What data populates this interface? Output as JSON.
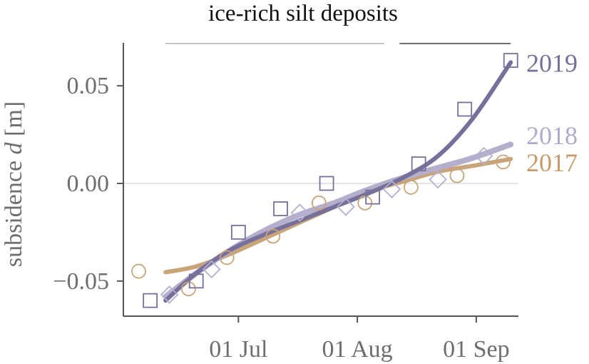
{
  "chart_data": {
    "type": "scatter",
    "title": "ice-rich silt deposits",
    "xlabel": "",
    "ylabel": "subsidence",
    "ylabel_symbol": "d",
    "ylabel_unit": "[m]",
    "x_type": "date",
    "xlim": [
      "2019-06-01",
      "2019-09-12"
    ],
    "ylim": [
      -0.068,
      0.072
    ],
    "x_ticks": [
      {
        "date": "2019-07-01",
        "label": "01 Jul"
      },
      {
        "date": "2019-08-01",
        "label": "01 Aug"
      },
      {
        "date": "2019-09-01",
        "label": "01 Sep"
      }
    ],
    "y_ticks": [
      {
        "value": 0.05,
        "label": "0.05"
      },
      {
        "value": 0.0,
        "label": "0.00"
      },
      {
        "value": -0.05,
        "label": "−0.05"
      }
    ],
    "grid": "horizontal line at 0.00 only",
    "period_bars": [
      {
        "start": "2019-06-12",
        "end": "2019-08-08",
        "color": "#c4c4c4"
      },
      {
        "start": "2019-08-12",
        "end": "2019-09-10",
        "color": "#707070"
      }
    ],
    "series": [
      {
        "name": "2017",
        "color": "#c9a478",
        "label_color": "#c79b6b",
        "marker": "circle",
        "points": [
          {
            "x": "2019-06-05",
            "y": -0.045
          },
          {
            "x": "2019-06-18",
            "y": -0.054
          },
          {
            "x": "2019-06-28",
            "y": -0.038
          },
          {
            "x": "2019-07-10",
            "y": -0.027
          },
          {
            "x": "2019-07-22",
            "y": -0.01
          },
          {
            "x": "2019-08-03",
            "y": -0.01
          },
          {
            "x": "2019-08-15",
            "y": -0.002
          },
          {
            "x": "2019-08-27",
            "y": 0.004
          },
          {
            "x": "2019-09-08",
            "y": 0.011
          }
        ],
        "fit": [
          {
            "x": "2019-06-12",
            "y": -0.0455
          },
          {
            "x": "2019-06-20",
            "y": -0.0425
          },
          {
            "x": "2019-06-29",
            "y": -0.036
          },
          {
            "x": "2019-07-08",
            "y": -0.028
          },
          {
            "x": "2019-07-17",
            "y": -0.02
          },
          {
            "x": "2019-07-26",
            "y": -0.012
          },
          {
            "x": "2019-08-04",
            "y": -0.004
          },
          {
            "x": "2019-08-13",
            "y": 0.001
          },
          {
            "x": "2019-08-22",
            "y": 0.006
          },
          {
            "x": "2019-08-31",
            "y": 0.009
          },
          {
            "x": "2019-09-10",
            "y": 0.0125
          }
        ]
      },
      {
        "name": "2018",
        "color": "#b6aecd",
        "label_color": "#b3aacb",
        "marker": "diamond",
        "points": [
          {
            "x": "2019-06-13",
            "y": -0.057
          },
          {
            "x": "2019-06-24",
            "y": -0.044
          },
          {
            "x": "2019-07-17",
            "y": -0.015
          },
          {
            "x": "2019-07-29",
            "y": -0.012
          },
          {
            "x": "2019-08-10",
            "y": -0.003
          },
          {
            "x": "2019-08-22",
            "y": 0.002
          },
          {
            "x": "2019-09-03",
            "y": 0.014
          }
        ],
        "fit": [
          {
            "x": "2019-06-12",
            "y": -0.058
          },
          {
            "x": "2019-06-20",
            "y": -0.046
          },
          {
            "x": "2019-06-29",
            "y": -0.034
          },
          {
            "x": "2019-07-08",
            "y": -0.024
          },
          {
            "x": "2019-07-17",
            "y": -0.016
          },
          {
            "x": "2019-07-26",
            "y": -0.01
          },
          {
            "x": "2019-08-04",
            "y": -0.003
          },
          {
            "x": "2019-08-13",
            "y": 0.003
          },
          {
            "x": "2019-08-22",
            "y": 0.008
          },
          {
            "x": "2019-08-31",
            "y": 0.013
          },
          {
            "x": "2019-09-10",
            "y": 0.02
          }
        ]
      },
      {
        "name": "2019",
        "color": "#77709a",
        "label_color": "#77709a",
        "marker": "square",
        "points": [
          {
            "x": "2019-06-08",
            "y": -0.06
          },
          {
            "x": "2019-06-20",
            "y": -0.05
          },
          {
            "x": "2019-07-01",
            "y": -0.025
          },
          {
            "x": "2019-07-12",
            "y": -0.013
          },
          {
            "x": "2019-07-24",
            "y": 0.0
          },
          {
            "x": "2019-08-05",
            "y": -0.007
          },
          {
            "x": "2019-08-17",
            "y": 0.01
          },
          {
            "x": "2019-08-29",
            "y": 0.038
          },
          {
            "x": "2019-09-10",
            "y": 0.063
          }
        ],
        "fit": [
          {
            "x": "2019-06-12",
            "y": -0.06
          },
          {
            "x": "2019-06-20",
            "y": -0.046
          },
          {
            "x": "2019-06-29",
            "y": -0.034
          },
          {
            "x": "2019-07-08",
            "y": -0.026
          },
          {
            "x": "2019-07-17",
            "y": -0.019
          },
          {
            "x": "2019-07-26",
            "y": -0.012
          },
          {
            "x": "2019-08-04",
            "y": -0.005
          },
          {
            "x": "2019-08-13",
            "y": 0.003
          },
          {
            "x": "2019-08-22",
            "y": 0.014
          },
          {
            "x": "2019-08-31",
            "y": 0.033
          },
          {
            "x": "2019-09-10",
            "y": 0.062
          }
        ]
      }
    ],
    "series_labels": [
      {
        "series": "2019",
        "text": "2019",
        "at_y": 0.0615
      },
      {
        "series": "2018",
        "text": "2018",
        "at_y": 0.0245
      },
      {
        "series": "2017",
        "text": "2017",
        "at_y": 0.0105
      }
    ]
  }
}
